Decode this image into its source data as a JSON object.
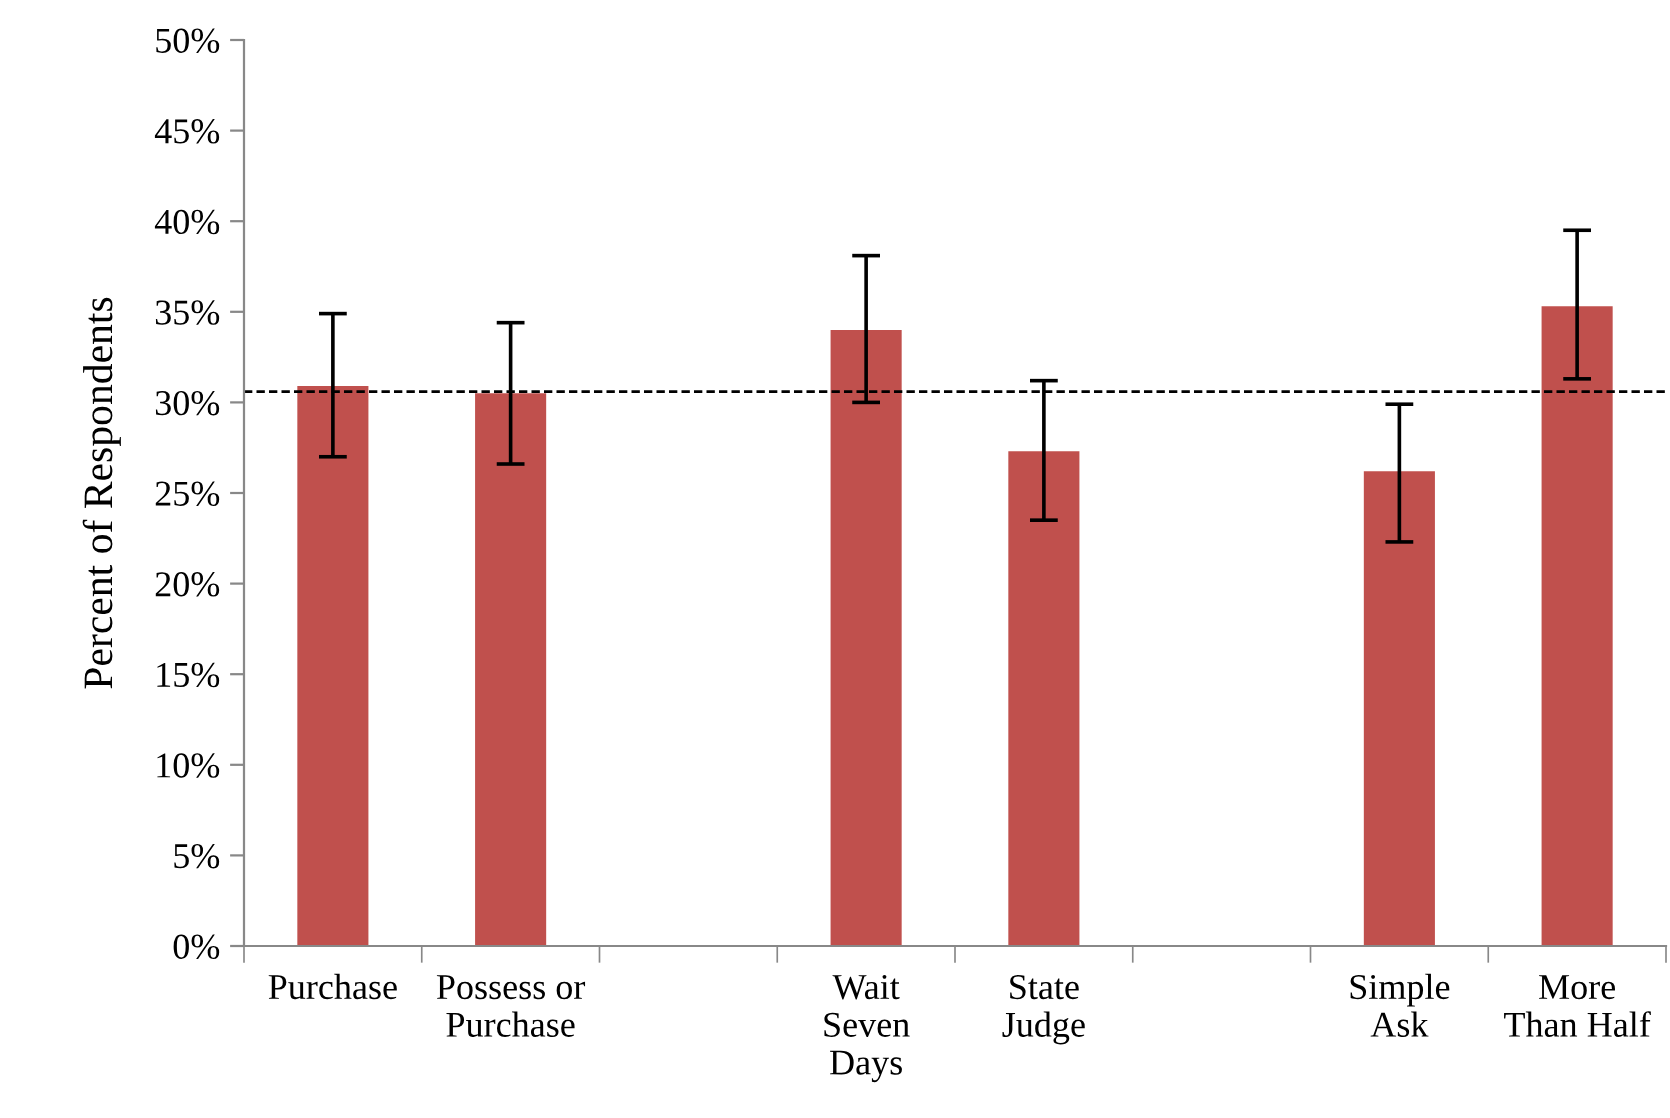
{
  "chart_data": {
    "type": "bar",
    "ylabel": "Percent of Respondents",
    "categories": [
      "Purchase",
      "Possess or\nPurchase",
      null,
      "Wait\nSeven\nDays",
      "State\nJudge",
      null,
      "Simple\nAsk",
      "More\nThan Half"
    ],
    "values": [
      30.9,
      30.5,
      null,
      34.0,
      27.3,
      null,
      26.2,
      35.3
    ],
    "errors": [
      [
        27.0,
        34.9
      ],
      [
        26.6,
        34.4
      ],
      null,
      [
        30.0,
        38.1
      ],
      [
        23.5,
        31.2
      ],
      null,
      [
        22.3,
        29.9
      ],
      [
        31.3,
        39.5
      ]
    ],
    "color": "#c0504d",
    "ylim": [
      0,
      50
    ],
    "yticks": [
      {
        "value": 0,
        "label": "0%"
      },
      {
        "value": 5,
        "label": "5%"
      },
      {
        "value": 10,
        "label": "10%"
      },
      {
        "value": 15,
        "label": "15%"
      },
      {
        "value": 20,
        "label": "20%"
      },
      {
        "value": 25,
        "label": "25%"
      },
      {
        "value": 30,
        "label": "30%"
      },
      {
        "value": 35,
        "label": "35%"
      },
      {
        "value": 40,
        "label": "40%"
      },
      {
        "value": 45,
        "label": "45%"
      },
      {
        "value": 50,
        "label": "50%"
      }
    ],
    "ref_lines": [
      {
        "axis": "y",
        "value": 30.6,
        "label": null,
        "color": "#000000",
        "line_style": "dashed"
      }
    ],
    "grid": false,
    "legend": false
  }
}
